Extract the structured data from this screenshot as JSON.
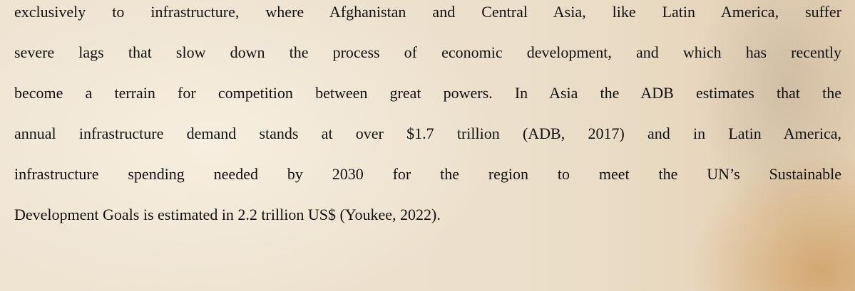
{
  "paragraph": {
    "lines": [
      "exclusively to infrastructure, where Afghanistan and Central Asia, like Latin America, suffer",
      "severe lags that slow down the process of economic development, and which has recently",
      "become a terrain for competition between great powers. In Asia the ADB estimates that the",
      "annual infrastructure demand stands at over $1.7 trillion (ADB, 2017) and in Latin America,",
      "infrastructure spending needed by 2030 for the region to meet the UN’s Sustainable",
      "Development Goals is estimated in 2.2 trillion US$ (Youkee, 2022)."
    ]
  }
}
